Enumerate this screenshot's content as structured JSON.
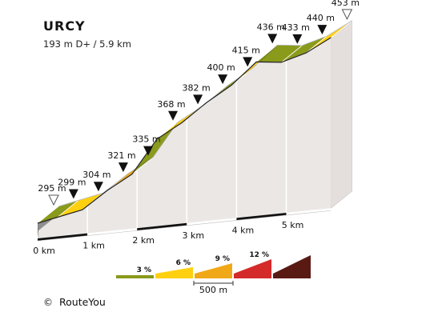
{
  "chart_data": {
    "type": "area",
    "title": "URCY",
    "subtitle": "193 m D+ / 5.9 km",
    "x_unit": "km",
    "y_unit": "m",
    "points": [
      {
        "km": 0.0,
        "alt": 295,
        "label": "295 m",
        "marker": "open"
      },
      {
        "km": 0.4,
        "alt": 299,
        "label": "299 m",
        "marker": "filled"
      },
      {
        "km": 0.9,
        "alt": 304,
        "label": "304 m",
        "marker": "filled"
      },
      {
        "km": 1.4,
        "alt": 321,
        "label": "321 m",
        "marker": "filled"
      },
      {
        "km": 1.9,
        "alt": 335,
        "label": "335 m",
        "marker": "filled"
      },
      {
        "km": 2.4,
        "alt": 368,
        "label": "368 m",
        "marker": "filled"
      },
      {
        "km": 2.9,
        "alt": 382,
        "label": "382 m",
        "marker": "filled"
      },
      {
        "km": 3.4,
        "alt": 400,
        "label": "400 m",
        "marker": "filled"
      },
      {
        "km": 3.9,
        "alt": 415,
        "label": "415 m",
        "marker": "filled"
      },
      {
        "km": 4.4,
        "alt": 436,
        "label": "436 m",
        "marker": "filled"
      },
      {
        "km": 4.9,
        "alt": 433,
        "label": "433 m",
        "marker": "filled"
      },
      {
        "km": 5.4,
        "alt": 440,
        "label": "440 m",
        "marker": "filled"
      },
      {
        "km": 5.9,
        "alt": 453,
        "label": "453 m",
        "marker": "open"
      }
    ],
    "segment_colors": [
      "#8a9a1b",
      "#8a9a1b",
      "#ffd010",
      "#8a9a1b",
      "#f0a818",
      "#8a9a1b",
      "#ffd010",
      "#ffd010",
      "#8a9a1b",
      "#ffd010",
      "#8a9a1b",
      "#8a9a1b",
      "#ffd010"
    ],
    "km_ticks": [
      {
        "km": 0,
        "label": "0 km"
      },
      {
        "km": 1,
        "label": "1 km"
      },
      {
        "km": 2,
        "label": "2 km"
      },
      {
        "km": 3,
        "label": "3 km"
      },
      {
        "km": 4,
        "label": "4 km"
      },
      {
        "km": 5,
        "label": "5 km"
      }
    ],
    "legend": {
      "items": [
        {
          "label": "3 %",
          "color": "#8a9a1b"
        },
        {
          "label": "6 %",
          "color": "#ffd010"
        },
        {
          "label": "9 %",
          "color": "#f0a818"
        },
        {
          "label": "12 %",
          "color": "#d42a2a"
        },
        {
          "label": "",
          "color": "#5a1a14"
        }
      ],
      "scale_label": "500 m"
    }
  },
  "footer": {
    "copyright_symbol": "©",
    "copyright": "RouteYou"
  }
}
